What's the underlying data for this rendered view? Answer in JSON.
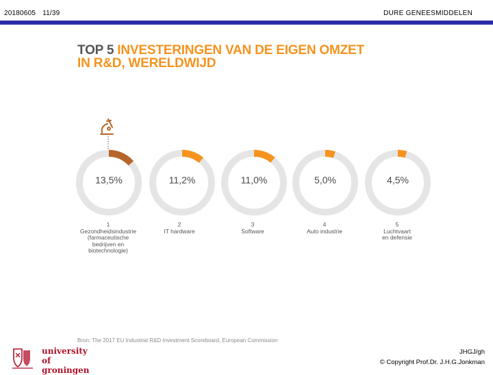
{
  "header": {
    "date": "20180605",
    "page": "11/39",
    "title": "DURE GENEESMIDDELEN"
  },
  "slide": {
    "title_gray": "TOP 5 ",
    "title_orange": "INVESTERINGEN VAN DE EIGEN OMZET",
    "title_line2": "IN R&D, WERELDWIJD",
    "icon": "microscope-icon"
  },
  "items": [
    {
      "rank": "1",
      "value": 13.5,
      "pct": "13,5%",
      "label": [
        "Gezondheidsindustrie",
        "(farmaceutische",
        "bedrijven en",
        "biotechnologie)"
      ],
      "color": "#b5662a"
    },
    {
      "rank": "2",
      "value": 11.2,
      "pct": "11,2%",
      "label": [
        "IT hardware"
      ],
      "color": "#f5931e"
    },
    {
      "rank": "3",
      "value": 11.0,
      "pct": "11,0%",
      "label": [
        "Software"
      ],
      "color": "#f5931e"
    },
    {
      "rank": "4",
      "value": 5.0,
      "pct": "5,0%",
      "label": [
        "Auto industrie"
      ],
      "color": "#f5931e"
    },
    {
      "rank": "5",
      "value": 4.5,
      "pct": "4,5%",
      "label": [
        "Luchtvaart",
        "en defensie"
      ],
      "color": "#f5931e"
    }
  ],
  "source": "Bron: The 2017 EU Industrial R&D Investment Scoreboard, European Commission",
  "logo": {
    "line1": "university of",
    "line2": "groningen"
  },
  "footer": {
    "author": "JHGJ/gh",
    "copyright": "© Copyright Prof.Dr. J.H.G.Jonkman"
  },
  "colors": {
    "header_bar": "#2c2ca8",
    "ring_track": "#e5e5e5",
    "accent": "#f5931e",
    "accent_dark": "#b5662a"
  }
}
